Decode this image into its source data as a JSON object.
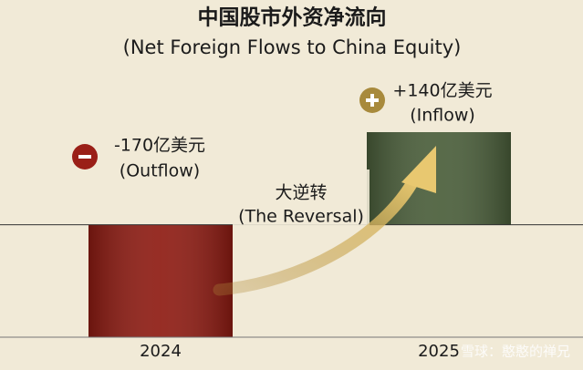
{
  "chart_data": {
    "type": "bar",
    "title": "中国股市外资净流向",
    "subtitle": "(Net Foreign Flows to China Equity)",
    "categories": [
      "2024",
      "2025"
    ],
    "values": [
      -170,
      140
    ],
    "value_labels": [
      "-170亿美元",
      "+140亿美元"
    ],
    "flow_labels": [
      "(Outflow)",
      "(Inflow)"
    ],
    "colors": [
      "#8e1b12",
      "#4a5e3a"
    ],
    "ylim": [
      -170,
      140
    ],
    "annotation": "大逆转",
    "annotation_subtitle": "(The Reversal)",
    "watermark": "雪球：憨憨的禅兄"
  }
}
